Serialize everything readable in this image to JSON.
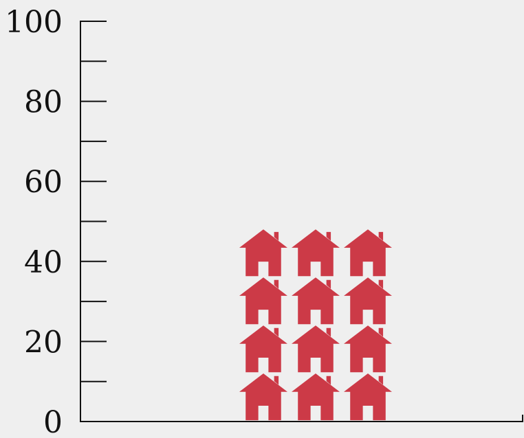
{
  "chart_data": {
    "type": "bar",
    "style": "pictogram",
    "icon": "house-icon",
    "categories": [
      ""
    ],
    "values": [
      48
    ],
    "ylim": [
      0,
      100
    ],
    "yticks": [
      0,
      20,
      40,
      60,
      80,
      100
    ],
    "yticks_minor": [
      10,
      30,
      50,
      70,
      90
    ],
    "ytick_labels": [
      "0",
      "20",
      "40",
      "60",
      "80",
      "100"
    ],
    "icon_grid": {
      "columns": 3,
      "rows": 4
    },
    "grid": false,
    "colors": {
      "icon": "#cc3a47",
      "axis": "#111111",
      "background": "#efefef"
    }
  }
}
